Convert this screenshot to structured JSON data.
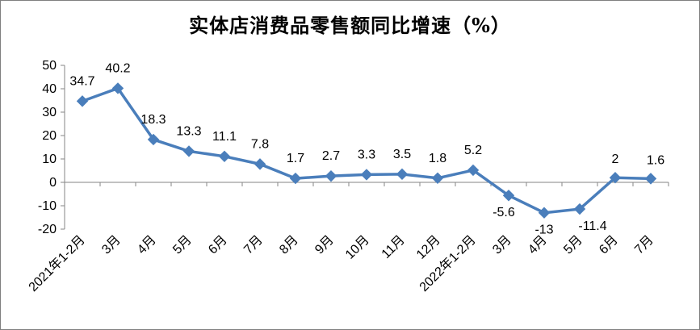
{
  "chart_data": {
    "type": "line",
    "title": "实体店消费品零售额同比增速（%）",
    "xlabel": "",
    "ylabel": "",
    "categories": [
      "2021年1-2月",
      "3月",
      "4月",
      "5月",
      "6月",
      "7月",
      "8月",
      "9月",
      "10月",
      "11月",
      "12月",
      "2022年1-2月",
      "3月",
      "4月",
      "5月",
      "6月",
      "7月"
    ],
    "series": [
      {
        "values": [
          34.7,
          40.2,
          18.3,
          13.3,
          11.1,
          7.8,
          1.7,
          2.7,
          3.3,
          3.5,
          1.8,
          5.2,
          -5.6,
          -13,
          -11.4,
          2,
          1.6
        ],
        "data_labels": [
          "34.7",
          "40.2",
          "18.3",
          "13.3",
          "11.1",
          "7.8",
          "1.7",
          "2.7",
          "3.3",
          "3.5",
          "1.8",
          "5.2",
          "-5.6",
          "-13",
          "-11.4",
          "2",
          "1.6"
        ]
      }
    ],
    "ylim": [
      -20,
      50
    ],
    "yticks": [
      -20,
      -10,
      0,
      10,
      20,
      30,
      40,
      50
    ],
    "ytick_labels": [
      "-20",
      "-10",
      "0",
      "10",
      "20",
      "30",
      "40",
      "50"
    ],
    "grid": false,
    "legend": "none",
    "colors": {
      "line": "#4a7ebb",
      "marker": "#4a7ebb",
      "axis": "#868686"
    }
  }
}
